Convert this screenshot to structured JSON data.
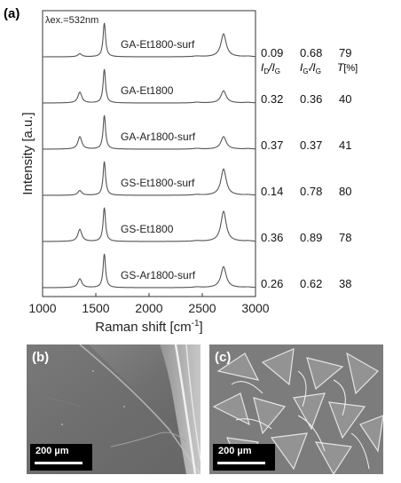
{
  "chart_data": {
    "type": "line",
    "panel_label": "(a)",
    "excitation_label": "λex.=532nm",
    "xlabel": "Raman shift [cm",
    "xlabel_sup": "-1",
    "xlabel_end": "]",
    "ylabel": "Intensity [a.u.]",
    "xlim": [
      1000,
      3000
    ],
    "x_ticks": [
      1000,
      1500,
      2000,
      2500,
      3000
    ],
    "x_tick_labels": [
      "1000",
      "1500",
      "2000",
      "2500",
      "3000"
    ],
    "column_headers": [
      {
        "main": "I",
        "sub": "D",
        "sep": "/I",
        "sub2": "G"
      },
      {
        "main": "I",
        "sub": "G'",
        "sep": "/I",
        "sub2": "G"
      },
      {
        "main": "T",
        "rest": "[%]"
      }
    ],
    "series": [
      {
        "name": "GA-Et1800-surf",
        "ID_IG": "0.09",
        "IGp_IG": "0.68",
        "T": "79",
        "peaks": {
          "D": 0.09,
          "G": 1.0,
          "2D": 0.68
        }
      },
      {
        "name": "GA-Et1800",
        "ID_IG": "0.32",
        "IGp_IG": "0.36",
        "T": "40",
        "peaks": {
          "D": 0.32,
          "G": 1.0,
          "2D": 0.36
        }
      },
      {
        "name": "GA-Ar1800-surf",
        "ID_IG": "0.37",
        "IGp_IG": "0.37",
        "T": "41",
        "peaks": {
          "D": 0.37,
          "G": 1.0,
          "2D": 0.37
        }
      },
      {
        "name": "GS-Et1800-surf",
        "ID_IG": "0.14",
        "IGp_IG": "0.78",
        "T": "80",
        "peaks": {
          "D": 0.14,
          "G": 1.0,
          "2D": 0.78
        }
      },
      {
        "name": "GS-Et1800",
        "ID_IG": "0.36",
        "IGp_IG": "0.89",
        "T": "78",
        "peaks": {
          "D": 0.36,
          "G": 1.0,
          "2D": 0.89
        }
      },
      {
        "name": "GS-Ar1800-surf",
        "ID_IG": "0.26",
        "IGp_IG": "0.62",
        "T": "38",
        "peaks": {
          "D": 0.26,
          "G": 1.0,
          "2D": 0.62
        }
      }
    ],
    "peak_positions_cm1": {
      "D": 1350,
      "G": 1580,
      "2D": 2700
    },
    "line_color": "#555555"
  },
  "micrographs": [
    {
      "label": "(b)",
      "scale_bar": "200 µm",
      "tone": "#7a7a7a"
    },
    {
      "label": "(c)",
      "scale_bar": "200 µm",
      "tone": "#8a8a8a"
    }
  ]
}
